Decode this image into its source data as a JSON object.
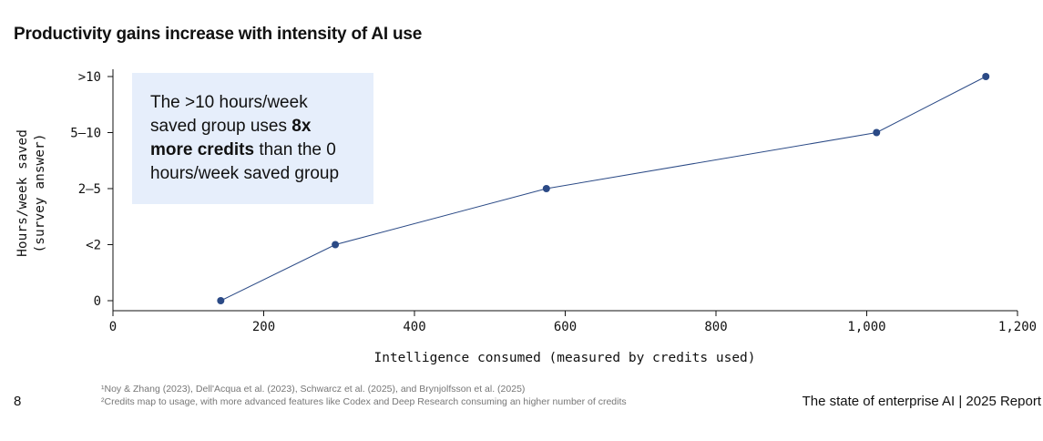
{
  "page": {
    "title": "Productivity gains increase with intensity of AI use",
    "page_number": "8",
    "report_label": "The state of enterprise AI  |  2025 Report",
    "footnotes": [
      "¹Noy & Zhang (2023), Dell'Acqua et al. (2023), Schwarcz et al. (2025), and Brynjolfsson et al. (2025)",
      "²Credits map to usage, with more advanced features like Codex and Deep Research consuming an higher number of credits"
    ]
  },
  "callout": {
    "part1": "The >10 hours/week saved group uses ",
    "bold": "8x more credits",
    "part2": " than the 0 hours/week saved group"
  },
  "chart_data": {
    "type": "line",
    "title": "Productivity gains increase with intensity of AI use",
    "xlabel": "Intelligence consumed (measured by credits used)",
    "ylabel": "Hours/week saved (survey answer)",
    "ylabel_lines": [
      "Hours/week saved",
      "(survey answer)"
    ],
    "xlim": [
      0,
      1200
    ],
    "x_ticks": [
      0,
      200,
      400,
      600,
      800,
      1000,
      1200
    ],
    "x_tick_labels": [
      "0",
      "200",
      "400",
      "600",
      "800",
      "1,000",
      "1,200"
    ],
    "y_categories": [
      "0",
      "<2",
      "2–5",
      "5–10",
      ">10"
    ],
    "series": [
      {
        "name": "Hours/week saved",
        "color": "#2b4a86",
        "x": [
          143,
          295,
          575,
          1013,
          1158
        ],
        "y": [
          "0",
          "<2",
          "2–5",
          "5–10",
          ">10"
        ]
      }
    ],
    "grid": false,
    "legend": "none"
  }
}
